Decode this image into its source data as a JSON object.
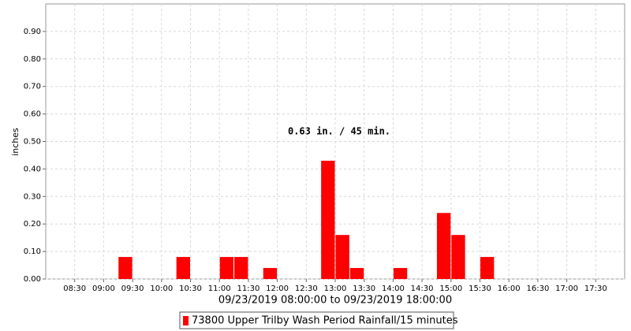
{
  "chart_data": {
    "type": "histogram",
    "annotation": "0.63 in. / 45 min.",
    "y_label": "inches",
    "x_label": "09/23/2019 08:00:00 to 09/23/2019 18:00:00",
    "bins": [
      "08:00",
      "08:15",
      "08:30",
      "08:45",
      "09:00",
      "09:15",
      "09:30",
      "09:45",
      "10:00",
      "10:15",
      "10:30",
      "10:45",
      "11:00",
      "11:15",
      "11:30",
      "11:45",
      "12:00",
      "12:15",
      "12:30",
      "12:45",
      "13:00",
      "13:15",
      "13:30",
      "13:45",
      "14:00",
      "14:15",
      "14:30",
      "14:45",
      "15:00",
      "15:15",
      "15:30",
      "15:45",
      "16:00",
      "16:15",
      "16:30",
      "16:45",
      "17:00",
      "17:15",
      "17:30",
      "17:45",
      "18:00"
    ],
    "series": [
      {
        "name": "73800 Upper Trilby Wash Period Rainfall/15 minutes",
        "color": "#ff0000",
        "values": [
          0,
          0,
          0,
          0,
          0,
          0.08,
          0,
          0,
          0,
          0.08,
          0,
          0,
          0.08,
          0.08,
          0,
          0.04,
          0,
          0,
          0,
          0.43,
          0.16,
          0.04,
          0,
          0,
          0.04,
          0,
          0,
          0.24,
          0.16,
          0,
          0.08,
          0,
          0,
          0,
          0,
          0,
          0,
          0,
          0,
          0
        ]
      }
    ],
    "xlim": [
      "08:00",
      "18:00"
    ],
    "xticks": [
      "08:30",
      "09:00",
      "09:30",
      "10:00",
      "10:30",
      "11:00",
      "11:30",
      "12:00",
      "12:30",
      "13:00",
      "13:30",
      "14:00",
      "14:30",
      "15:00",
      "15:30",
      "16:00",
      "16:30",
      "17:00",
      "17:30"
    ],
    "ylim": [
      0,
      1.0
    ],
    "yticks": [
      {
        "value": 0,
        "label": "0.00"
      },
      {
        "value": 0.1,
        "label": "0.10"
      },
      {
        "value": 0.2,
        "label": "0.20"
      },
      {
        "value": 0.3,
        "label": "0.30"
      },
      {
        "value": 0.4,
        "label": "0.40"
      },
      {
        "value": 0.5,
        "label": "0.50"
      },
      {
        "value": 0.6,
        "label": "0.60"
      },
      {
        "value": 0.7,
        "label": "0.70"
      },
      {
        "value": 0.8,
        "label": "0.80"
      },
      {
        "value": 0.9,
        "label": "0.90"
      }
    ],
    "grid": true
  }
}
